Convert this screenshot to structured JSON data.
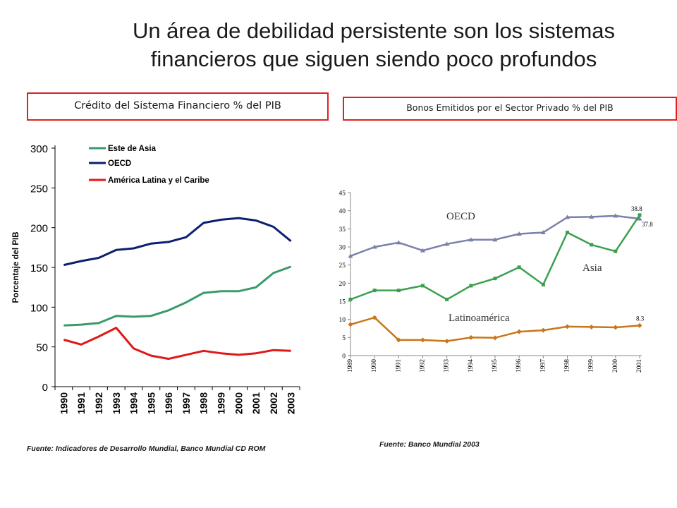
{
  "title_line1": "Un área de debilidad persistente son los sistemas",
  "title_line2": "financieros que siguen siendo poco profundos",
  "left_label": "Crédito del Sistema Financiero % del PIB",
  "right_label": "Bonos Emitidos  por el Sector Privado % del PIB",
  "source_left": "Fuente: Indicadores de Desarrollo Mundial, Banco  Mundial CD ROM",
  "source_right": "Fuente: Banco Mundial 2003",
  "chart_data": [
    {
      "type": "line",
      "title": "Crédito del Sistema Financiero % del PIB",
      "ylabel": "Porcentaje del PIB",
      "xlabel": "",
      "ylim": [
        0,
        300
      ],
      "yticks": [
        0,
        50,
        100,
        150,
        200,
        250,
        300
      ],
      "x": [
        "1990",
        "1991",
        "1992",
        "1993",
        "1994",
        "1995",
        "1996",
        "1997",
        "1998",
        "1999",
        "2000",
        "2001",
        "2002",
        "2003"
      ],
      "legend_position": "top-left",
      "series": [
        {
          "name": "Este de Asia",
          "color": "#3a9a6a",
          "values": [
            77,
            78,
            80,
            89,
            88,
            89,
            96,
            106,
            118,
            120,
            120,
            125,
            143,
            151
          ]
        },
        {
          "name": "OECD",
          "color": "#0d1f6e",
          "values": [
            153,
            158,
            162,
            172,
            174,
            180,
            182,
            188,
            206,
            210,
            212,
            209,
            201,
            183
          ]
        },
        {
          "name": "América Latina y el Caribe",
          "color": "#e01818",
          "values": [
            59,
            53,
            63,
            74,
            48,
            39,
            35,
            40,
            45,
            42,
            40,
            42,
            46,
            45
          ]
        }
      ]
    },
    {
      "type": "line",
      "title": "Bonos Emitidos  por el Sector Privado % del PIB",
      "ylim": [
        0,
        45
      ],
      "yticks": [
        0,
        5,
        10,
        15,
        20,
        25,
        30,
        35,
        40,
        45
      ],
      "x": [
        "1989",
        "1990",
        "1991",
        "1992",
        "1993",
        "1994",
        "1995",
        "1996",
        "1997",
        "1998",
        "1999",
        "2000",
        "2001"
      ],
      "series": [
        {
          "name": "OECD",
          "color": "#7b7faa",
          "values": [
            27.5,
            30,
            31.2,
            29,
            30.8,
            32,
            32,
            33.6,
            34,
            38.2,
            38.3,
            38.6,
            37.8
          ],
          "end_label": "37.8"
        },
        {
          "name": "Asia",
          "color": "#3aa050",
          "values": [
            15.5,
            18,
            18,
            19.3,
            15.5,
            19.3,
            21.3,
            24.4,
            19.6,
            34,
            30.6,
            28.8,
            38.8
          ],
          "end_label": "38.8"
        },
        {
          "name": "Latinoamérica",
          "color": "#c8761a",
          "values": [
            8.6,
            10.5,
            4.3,
            4.3,
            4,
            5,
            4.9,
            6.6,
            7,
            8,
            7.9,
            7.8,
            8.3
          ],
          "end_label": "8.3"
        }
      ]
    }
  ]
}
